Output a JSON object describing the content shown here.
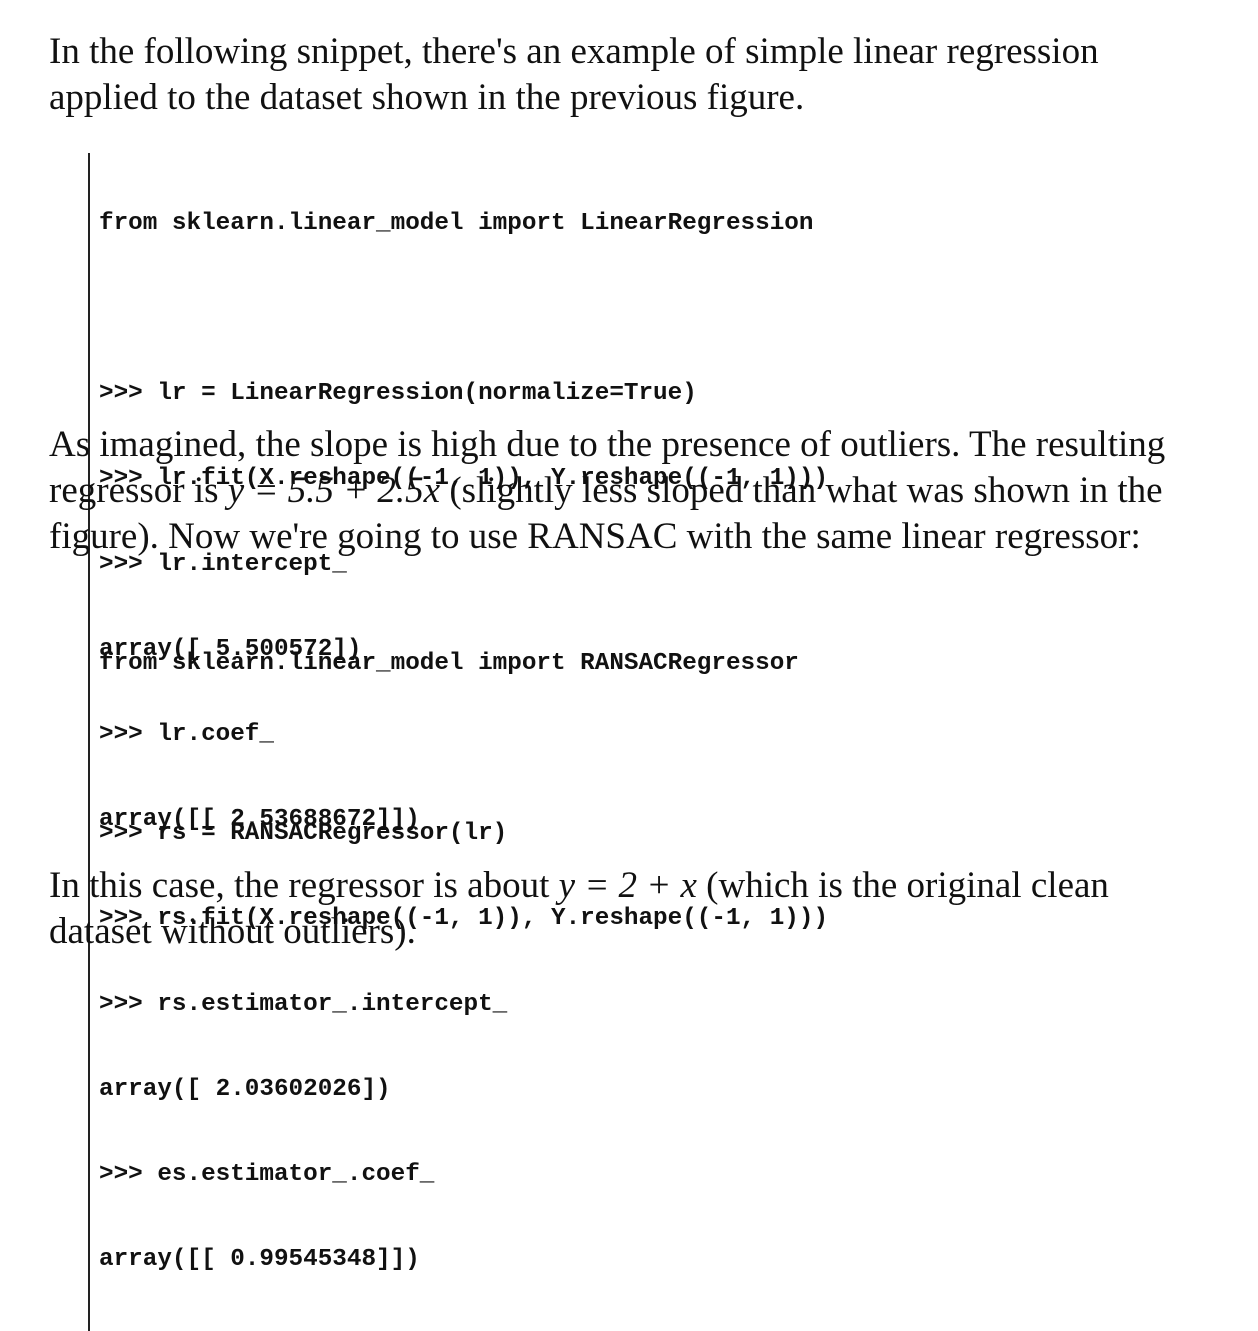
{
  "paragraph_1": {
    "line_1": "In the following snippet, there's an example of simple linear regression",
    "line_2": "applied to the dataset shown in the previous figure."
  },
  "code_block_1": {
    "import_line": "from sklearn.linear_model import LinearRegression",
    "lines": [
      ">>> lr = LinearRegression(normalize=True)",
      ">>> lr.fit(X.reshape((-1, 1)), Y.reshape((-1, 1)))",
      ">>> lr.intercept_",
      "array([ 5.500572])",
      ">>> lr.coef_",
      "array([[ 2.53688672]])"
    ]
  },
  "paragraph_2": {
    "line_1": "As imagined, the slope is high due to the presence of outliers. The resulting",
    "line_2_prefix": "regressor is ",
    "line_2_formula": "y = 5.5 + 2.5x",
    "line_2_suffix": " (slightly less sloped than what was shown in the",
    "line_3": "figure). Now we're going to use RANSAC with the same linear regressor:"
  },
  "code_block_2": {
    "import_line": "from sklearn.linear_model import RANSACRegressor",
    "lines": [
      ">>> rs = RANSACRegressor(lr)",
      ">>> rs.fit(X.reshape((-1, 1)), Y.reshape((-1, 1)))",
      ">>> rs.estimator_.intercept_",
      "array([ 2.03602026])",
      ">>> es.estimator_.coef_",
      "array([[ 0.99545348]])"
    ]
  },
  "paragraph_3": {
    "line_1_prefix": "In this case, the regressor is about ",
    "line_1_formula": "y = 2 + x",
    "line_1_suffix": " (which is the original clean",
    "line_2": "dataset without outliers)."
  }
}
